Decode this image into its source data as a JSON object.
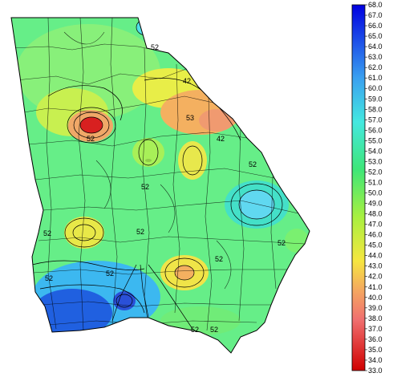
{
  "legend": {
    "ticks": [
      "68.0",
      "67.0",
      "66.0",
      "65.0",
      "64.0",
      "63.0",
      "62.0",
      "61.0",
      "60.0",
      "59.0",
      "58.0",
      "57.0",
      "56.0",
      "55.0",
      "54.0",
      "53.0",
      "52.0",
      "51.0",
      "50.0",
      "49.0",
      "48.0",
      "47.0",
      "46.0",
      "45.0",
      "44.0",
      "43.0",
      "42.0",
      "41.0",
      "40.0",
      "39.0",
      "38.0",
      "37.0",
      "36.0",
      "35.0",
      "34.0",
      "33.0"
    ]
  },
  "contour_labels": [
    "52",
    "42",
    "53",
    "42",
    "52",
    "52",
    "52",
    "52",
    "52",
    "52",
    "52",
    "52",
    "52",
    "52",
    "52"
  ]
}
